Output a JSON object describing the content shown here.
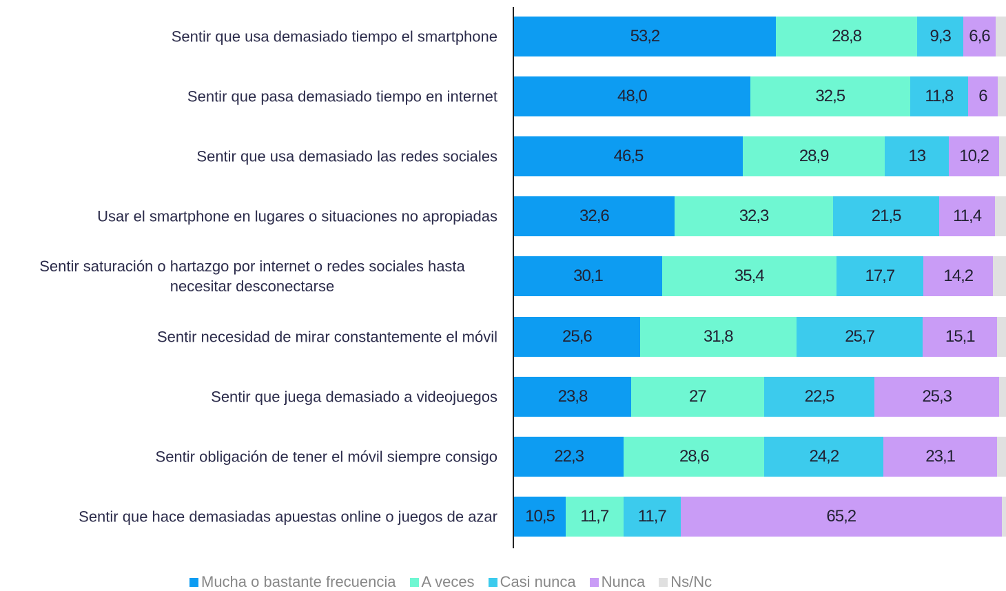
{
  "chart_data": {
    "type": "stacked-bar-horizontal",
    "categories": [
      "Sentir que usa demasiado tiempo el smartphone",
      "Sentir que pasa demasiado tiempo en internet",
      "Sentir que usa demasiado las redes sociales",
      "Usar el smartphone en lugares o situaciones no apropiadas",
      "Sentir saturación o hartazgo por internet o redes sociales hasta necesitar desconectarse",
      "Sentir necesidad de mirar constantemente el móvil",
      "Sentir que juega demasiado a videojuegos",
      "Sentir obligación de tener el móvil siempre consigo",
      "Sentir que hace demasiadas apuestas online o juegos de azar"
    ],
    "series": [
      {
        "name": "Mucha o bastante frecuencia",
        "color": "#0d9cf2",
        "values": [
          53.2,
          48.0,
          46.5,
          32.6,
          30.1,
          25.6,
          23.8,
          22.3,
          10.5
        ],
        "value_labels": [
          "53,2",
          "48,0",
          "46,5",
          "32,6",
          "30,1",
          "25,6",
          "23,8",
          "22,3",
          "10,5"
        ]
      },
      {
        "name": "A veces",
        "color": "#6ff7d2",
        "values": [
          28.8,
          32.5,
          28.9,
          32.3,
          35.4,
          31.8,
          27,
          28.6,
          11.7
        ],
        "value_labels": [
          "28,8",
          "32,5",
          "28,9",
          "32,3",
          "35,4",
          "31,8",
          "27",
          "28,6",
          "11,7"
        ]
      },
      {
        "name": "Casi nunca",
        "color": "#3ccbed",
        "values": [
          9.3,
          11.8,
          13,
          21.5,
          17.7,
          25.7,
          22.5,
          24.2,
          11.7
        ],
        "value_labels": [
          "9,3",
          "11,8",
          "13",
          "21,5",
          "17,7",
          "25,7",
          "22,5",
          "24,2",
          "11,7"
        ]
      },
      {
        "name": "Nunca",
        "color": "#c99cf6",
        "values": [
          6.6,
          6,
          10.2,
          11.4,
          14.2,
          15.1,
          25.3,
          23.1,
          65.2
        ],
        "value_labels": [
          "6,6",
          "6",
          "10,2",
          "11,4",
          "14,2",
          "15,1",
          "25,3",
          "23,1",
          "65,2"
        ]
      },
      {
        "name": "Ns/Nc",
        "color": "#e0e0e0",
        "values": [
          2.1,
          1.7,
          1.4,
          2.2,
          2.6,
          1.8,
          1.4,
          1.8,
          0.9
        ]
      }
    ],
    "xlim": [
      0,
      100
    ]
  }
}
